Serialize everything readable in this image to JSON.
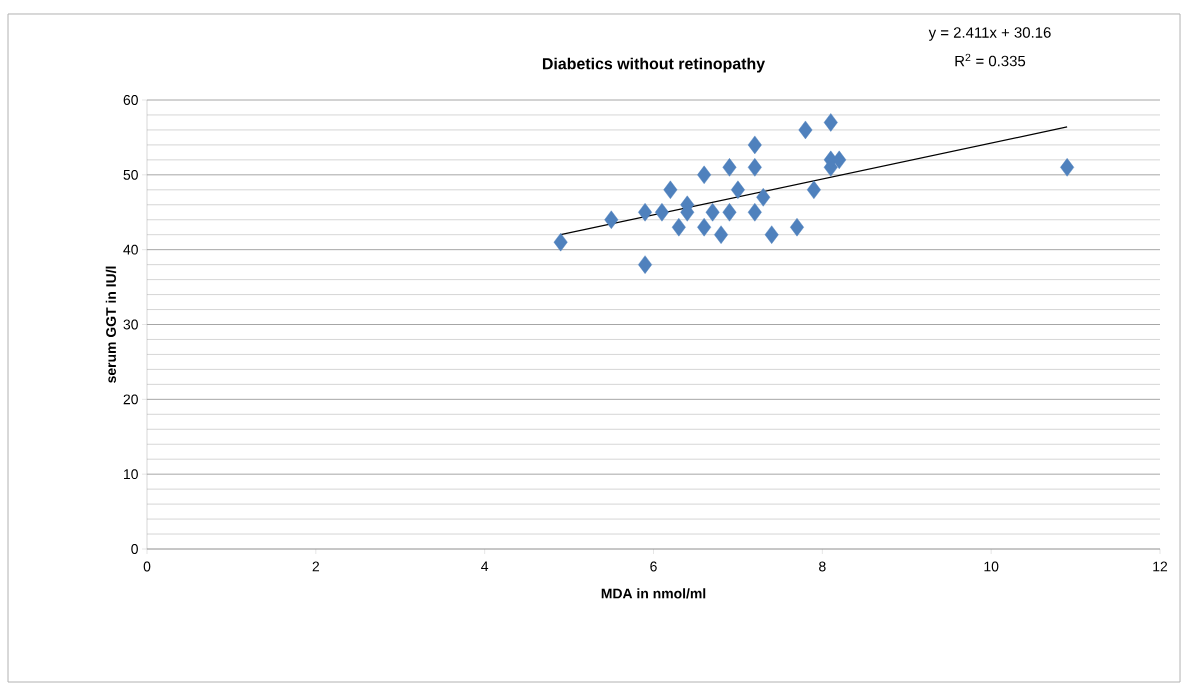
{
  "chart_data": {
    "type": "scatter",
    "title": "Diabetics without retinopathy",
    "xlabel": "MDA in nmol/ml",
    "ylabel": "serum GGT in IU/l",
    "annotations": [
      "y = 2.411x + 30.16",
      "R$^{2}$ = 0.335"
    ],
    "series": [
      {
        "color": "#4f81bd",
        "marker": "diamond",
        "x": [
          4.9,
          5.5,
          5.9,
          5.9,
          6.1,
          6.2,
          6.3,
          6.4,
          6.4,
          6.6,
          6.6,
          6.7,
          6.8,
          6.9,
          6.9,
          7.0,
          7.2,
          7.2,
          7.2,
          7.3,
          7.4,
          7.7,
          7.8,
          7.9,
          8.1,
          8.1,
          8.1,
          8.2,
          10.9
        ],
        "values": [
          41,
          44,
          45,
          38,
          45,
          48,
          43,
          46,
          45,
          50,
          43,
          45,
          42,
          51,
          45,
          48,
          54,
          51,
          45,
          47,
          42,
          43,
          56,
          48,
          57,
          51,
          52,
          52,
          51
        ]
      },
      {
        "type": "line",
        "color": "#000000",
        "marker": "none",
        "x": [
          4.9,
          10.9
        ],
        "values": [
          42.0,
          56.4
        ]
      }
    ],
    "xlim": [
      0,
      12
    ],
    "xticks": [
      0,
      2,
      4,
      6,
      8,
      10,
      12
    ],
    "ylim": [
      0,
      60
    ],
    "yticks": [
      0,
      10,
      20,
      30,
      40,
      50,
      60
    ],
    "grid": "y"
  }
}
